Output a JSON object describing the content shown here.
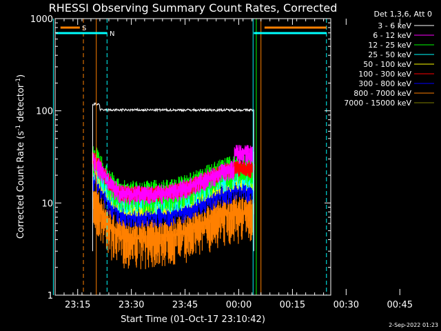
{
  "chart_data": {
    "type": "line",
    "title": "RHESSI Observing Summary Count Rates, Corrected",
    "xlabel": "Start Time (01-Oct-17 23:10:42)",
    "ylabel_main": "Corrected Count Rate (s",
    "ylabel_sup1": "-1",
    "ylabel_mid": " detector",
    "ylabel_sup2": "-1",
    "ylabel_end": ")",
    "y_scale": "log",
    "ylim": [
      1,
      1000
    ],
    "y_ticks": [
      {
        "value": 1,
        "label": "1"
      },
      {
        "value": 10,
        "label": "10"
      },
      {
        "value": 100,
        "label": "100"
      },
      {
        "value": 1000,
        "label": "1000"
      }
    ],
    "xlim_minutes": [
      -2,
      75
    ],
    "x_ticks": [
      {
        "minutes": 4.3,
        "label": "23:15"
      },
      {
        "minutes": 19.3,
        "label": "23:30"
      },
      {
        "minutes": 34.3,
        "label": "23:45"
      },
      {
        "minutes": 49.3,
        "label": "00:00"
      },
      {
        "minutes": 64.3,
        "label": "00:15"
      },
      {
        "minutes": 79.3,
        "label": "00:30"
      },
      {
        "minutes": 94.3,
        "label": "00:45"
      }
    ],
    "legend_header": "Det 1,3,6, Att 0",
    "legend_placement": "right",
    "series": [
      {
        "name": "3 - 6 keV",
        "color": "#ffffff"
      },
      {
        "name": "6 - 12 keV",
        "color": "#ff00ff"
      },
      {
        "name": "12 - 25 keV",
        "color": "#00ff00"
      },
      {
        "name": "25 - 50 keV",
        "color": "#00ffff"
      },
      {
        "name": "50 - 100 keV",
        "color": "#ffff00"
      },
      {
        "name": "100 - 300 keV",
        "color": "#ff0000"
      },
      {
        "name": "300 - 800 keV",
        "color": "#0000ff"
      },
      {
        "name": "800 - 7000 keV",
        "color": "#ff8000"
      },
      {
        "name": "7000 - 15000 keV",
        "color": "#808000"
      }
    ],
    "flags": [
      {
        "label": "S",
        "color": "#ff8000"
      },
      {
        "label": "N",
        "color": "#00ffff"
      }
    ],
    "footer": "2-Sep-2022 01:23"
  }
}
